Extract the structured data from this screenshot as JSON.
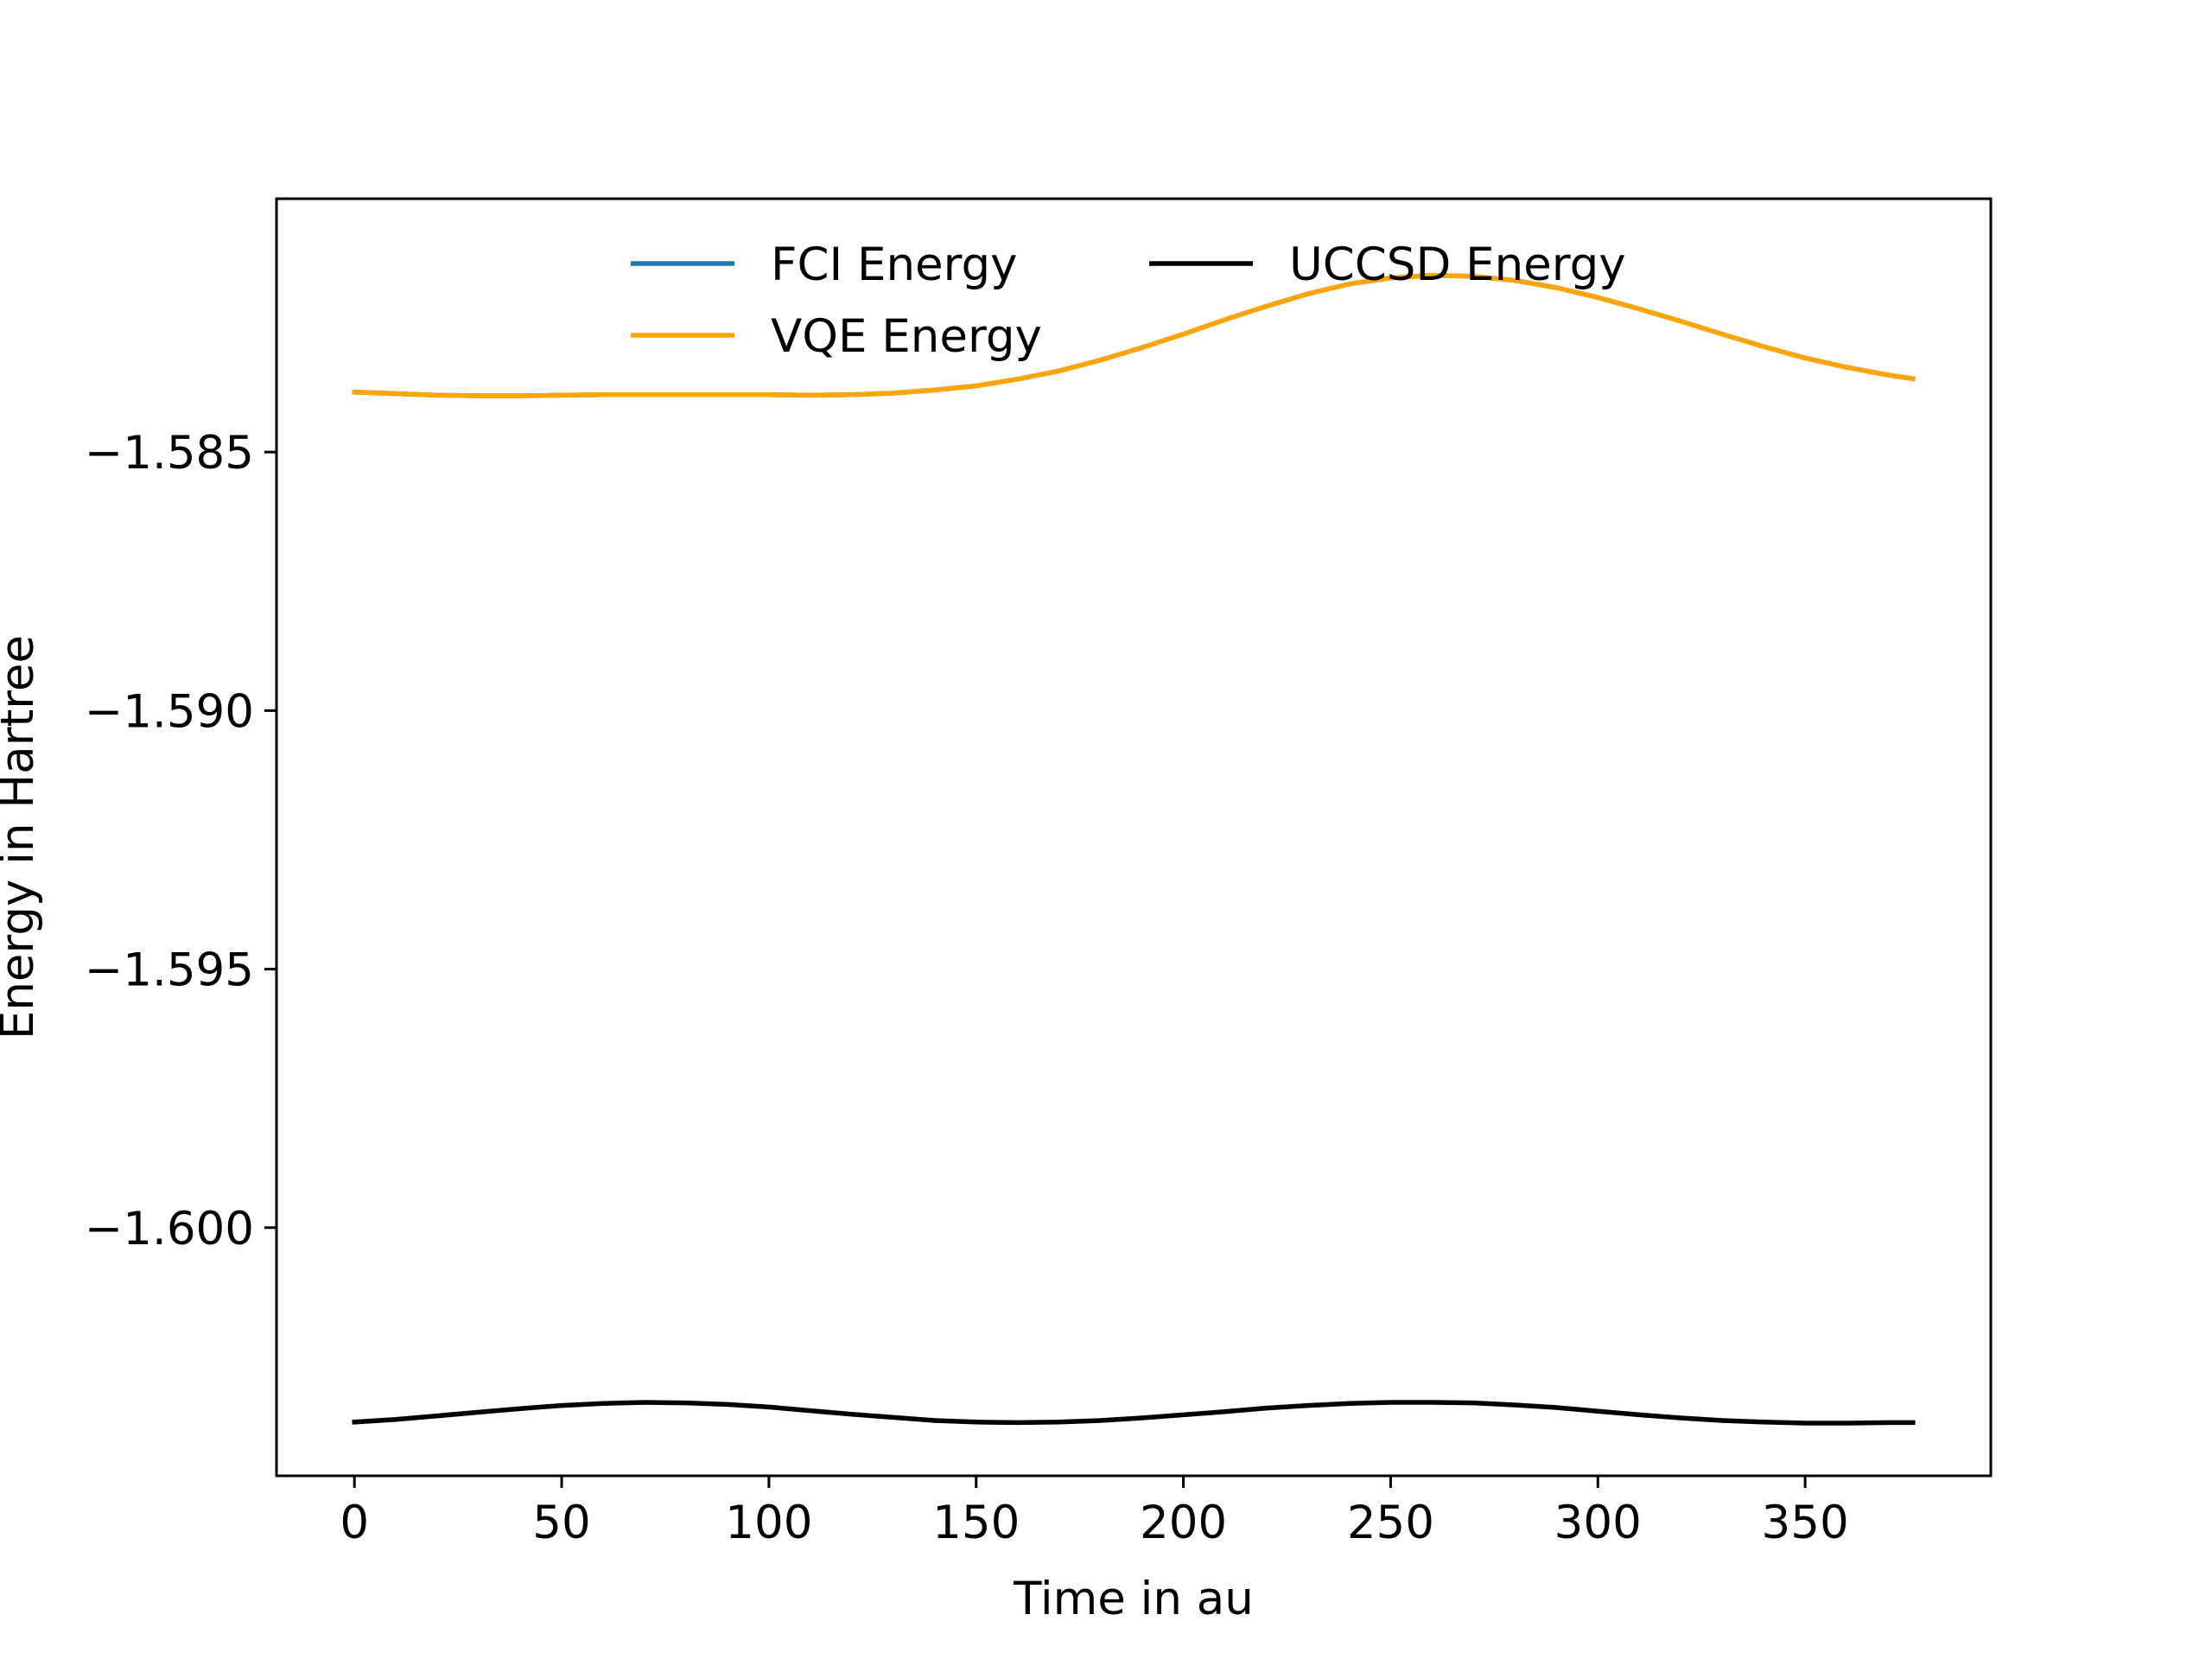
{
  "chart_data": {
    "type": "line",
    "title": "",
    "xlabel": "Time in au",
    "ylabel": "Energy in Hartree",
    "xlim": [
      -18.8,
      394.8
    ],
    "ylim": [
      -1.6048,
      -1.5801
    ],
    "xticks": [
      0,
      50,
      100,
      150,
      200,
      250,
      300,
      350
    ],
    "xtick_labels": [
      "0",
      "50",
      "100",
      "150",
      "200",
      "250",
      "300",
      "350"
    ],
    "yticks": [
      -1.585,
      -1.59,
      -1.595,
      -1.6
    ],
    "ytick_labels": [
      "−1.585",
      "−1.590",
      "−1.595",
      "−1.600"
    ],
    "grid": false,
    "legend": {
      "placement": "top-center",
      "columns": 2
    },
    "x": [
      0,
      10,
      20,
      30,
      40,
      50,
      60,
      70,
      80,
      90,
      100,
      110,
      120,
      130,
      140,
      150,
      160,
      170,
      180,
      190,
      200,
      210,
      220,
      230,
      240,
      250,
      260,
      270,
      280,
      290,
      300,
      310,
      320,
      330,
      340,
      350,
      360,
      370,
      376
    ],
    "series": [
      {
        "name": "FCI Energy",
        "color": "#1f77b4",
        "values": [
          -1.58384,
          -1.58387,
          -1.5839,
          -1.58391,
          -1.58391,
          -1.5839,
          -1.58389,
          -1.58389,
          -1.58389,
          -1.58389,
          -1.58389,
          -1.5839,
          -1.58389,
          -1.58386,
          -1.5838,
          -1.58372,
          -1.58359,
          -1.58343,
          -1.58322,
          -1.58298,
          -1.58272,
          -1.58244,
          -1.58218,
          -1.58194,
          -1.58175,
          -1.58163,
          -1.58158,
          -1.5816,
          -1.58168,
          -1.58182,
          -1.58201,
          -1.58223,
          -1.58247,
          -1.58272,
          -1.58296,
          -1.58318,
          -1.58336,
          -1.58351,
          -1.58358
        ]
      },
      {
        "name": "VQE Energy",
        "color": "#ffa500",
        "values": [
          -1.58384,
          -1.58387,
          -1.5839,
          -1.58391,
          -1.58391,
          -1.5839,
          -1.58389,
          -1.58389,
          -1.58389,
          -1.58389,
          -1.58389,
          -1.5839,
          -1.58389,
          -1.58386,
          -1.5838,
          -1.58372,
          -1.58359,
          -1.58343,
          -1.58322,
          -1.58298,
          -1.58272,
          -1.58244,
          -1.58218,
          -1.58194,
          -1.58175,
          -1.58163,
          -1.58158,
          -1.5816,
          -1.58168,
          -1.58182,
          -1.58201,
          -1.58223,
          -1.58247,
          -1.58272,
          -1.58296,
          -1.58318,
          -1.58336,
          -1.58351,
          -1.58358
        ]
      },
      {
        "name": "UCCSD Energy",
        "color": "#000000",
        "values": [
          -1.60376,
          -1.60371,
          -1.60364,
          -1.60357,
          -1.6035,
          -1.60344,
          -1.6034,
          -1.60338,
          -1.60339,
          -1.60342,
          -1.60347,
          -1.60354,
          -1.60361,
          -1.60367,
          -1.60373,
          -1.60376,
          -1.60377,
          -1.60376,
          -1.60373,
          -1.60368,
          -1.60362,
          -1.60356,
          -1.60349,
          -1.60344,
          -1.6034,
          -1.60338,
          -1.60338,
          -1.60339,
          -1.60343,
          -1.60348,
          -1.60355,
          -1.60362,
          -1.60368,
          -1.60373,
          -1.60376,
          -1.60378,
          -1.60378,
          -1.60377,
          -1.60377
        ]
      }
    ]
  }
}
